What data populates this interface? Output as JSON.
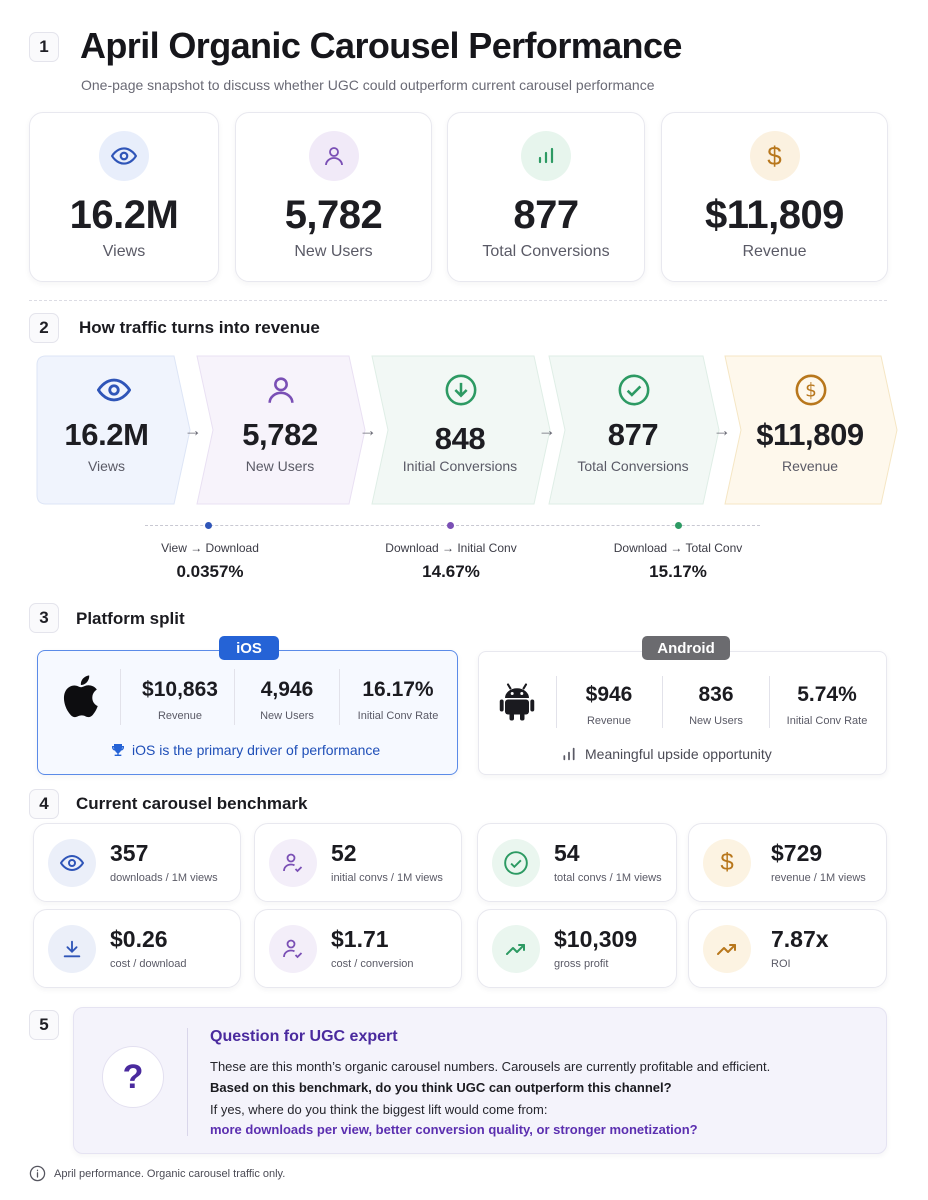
{
  "header": {
    "number": "1",
    "title": "April Organic Carousel Performance",
    "subtitle": "One-page snapshot to discuss whether UGC could outperform current carousel performance"
  },
  "kpis": [
    {
      "icon": "eye-icon",
      "value": "16.2M",
      "label": "Views"
    },
    {
      "icon": "user-icon",
      "value": "5,782",
      "label": "New Users"
    },
    {
      "icon": "bar-chart-icon",
      "value": "877",
      "label": "Total Conversions"
    },
    {
      "icon": "dollar-icon",
      "value": "$11,809",
      "label": "Revenue"
    }
  ],
  "funnel": {
    "number": "2",
    "title": "How traffic turns into revenue",
    "steps": [
      {
        "icon": "eye-icon",
        "value": "16.2M",
        "label": "Views"
      },
      {
        "icon": "user-icon",
        "value": "5,782",
        "label": "New Users"
      },
      {
        "icon": "download-circle-icon",
        "value": "848",
        "label": "Initial Conversions"
      },
      {
        "icon": "check-circle-icon",
        "value": "877",
        "label": "Total Conversions"
      },
      {
        "icon": "dollar-circle-icon",
        "value": "$11,809",
        "label": "Revenue"
      }
    ],
    "arrow": "→",
    "rates": [
      {
        "label": "View → Download",
        "value": "0.0357%"
      },
      {
        "label": "Download → Initial Conv",
        "value": "14.67%"
      },
      {
        "label": "Download → Total Conv",
        "value": "15.17%"
      }
    ]
  },
  "platform": {
    "number": "3",
    "title": "Platform split",
    "ios": {
      "tag": "iOS",
      "icon": "apple-icon",
      "stats": [
        {
          "value": "$10,863",
          "label": "Revenue"
        },
        {
          "value": "4,946",
          "label": "New Users"
        },
        {
          "value": "16.17%",
          "label": "Initial Conv Rate"
        }
      ],
      "note_icon": "trophy-icon",
      "note": "iOS is the primary driver of performance"
    },
    "android": {
      "tag": "Android",
      "icon": "android-icon",
      "stats": [
        {
          "value": "$946",
          "label": "Revenue"
        },
        {
          "value": "836",
          "label": "New Users"
        },
        {
          "value": "5.74%",
          "label": "Initial Conv Rate"
        }
      ],
      "note_icon": "bar-chart-icon",
      "note": "Meaningful upside opportunity"
    }
  },
  "benchmark": {
    "number": "4",
    "title": "Current carousel benchmark",
    "items": [
      {
        "icon": "eye-icon",
        "value": "357",
        "label": "downloads / 1M views"
      },
      {
        "icon": "user-check-icon",
        "value": "52",
        "label": "initial convs / 1M views"
      },
      {
        "icon": "check-circle-icon",
        "value": "54",
        "label": "total convs / 1M views"
      },
      {
        "icon": "dollar-icon",
        "value": "$729",
        "label": "revenue / 1M views"
      },
      {
        "icon": "download-icon",
        "value": "$0.26",
        "label": "cost / download"
      },
      {
        "icon": "user-check-icon",
        "value": "$1.71",
        "label": "cost / conversion"
      },
      {
        "icon": "trend-up-icon",
        "value": "$10,309",
        "label": "gross profit"
      },
      {
        "icon": "trend-up-icon",
        "value": "7.87x",
        "label": "ROI"
      }
    ]
  },
  "question": {
    "number": "5",
    "icon": "question-icon",
    "title": "Question for UGC expert",
    "line1": "These are this month’s organic carousel numbers. Carousels are currently profitable and efficient.",
    "line2": "Based on this benchmark, do you think UGC can outperform this channel?",
    "line3": "If yes, where do you think the biggest lift would come from:",
    "line4": "more downloads per view, better conversion quality, or stronger monetization?"
  },
  "footer": {
    "icon": "info-icon",
    "text": "April performance. Organic carousel traffic only."
  },
  "colors": {
    "views": "#2f55b8",
    "users": "#7a4fb5",
    "conversions": "#2d9a63",
    "revenue": "#b8771c",
    "ios_accent": "#2563d6",
    "question_accent": "#5b2fb0"
  }
}
